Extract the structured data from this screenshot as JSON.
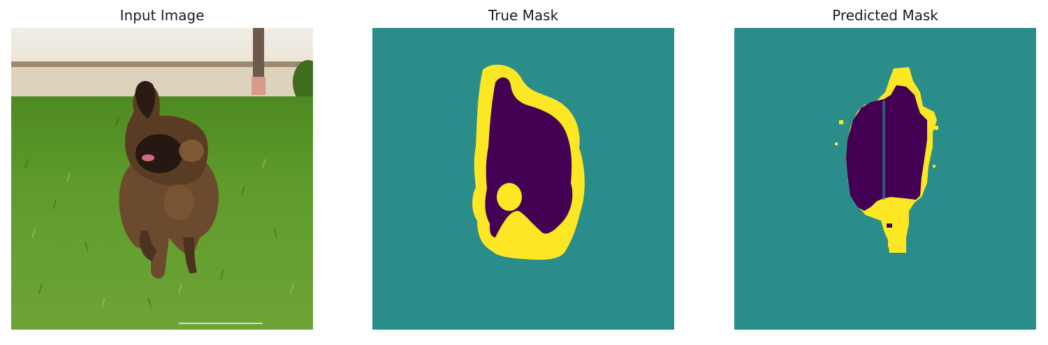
{
  "figure": {
    "panels": [
      {
        "title": "Input Image",
        "content": "photo of a brown puppy running on green grass"
      },
      {
        "title": "True Mask",
        "content": "segmentation mask"
      },
      {
        "title": "Predicted Mask",
        "content": "segmentation mask"
      }
    ]
  },
  "colors": {
    "mask_background": "#2a8d8a",
    "mask_pet": "#440154",
    "mask_border": "#fde725",
    "grass_light": "#5f9c2c",
    "grass_dark": "#3f7a1b",
    "wall": "#ece6da",
    "dog_fur": "#6b4a2e"
  }
}
